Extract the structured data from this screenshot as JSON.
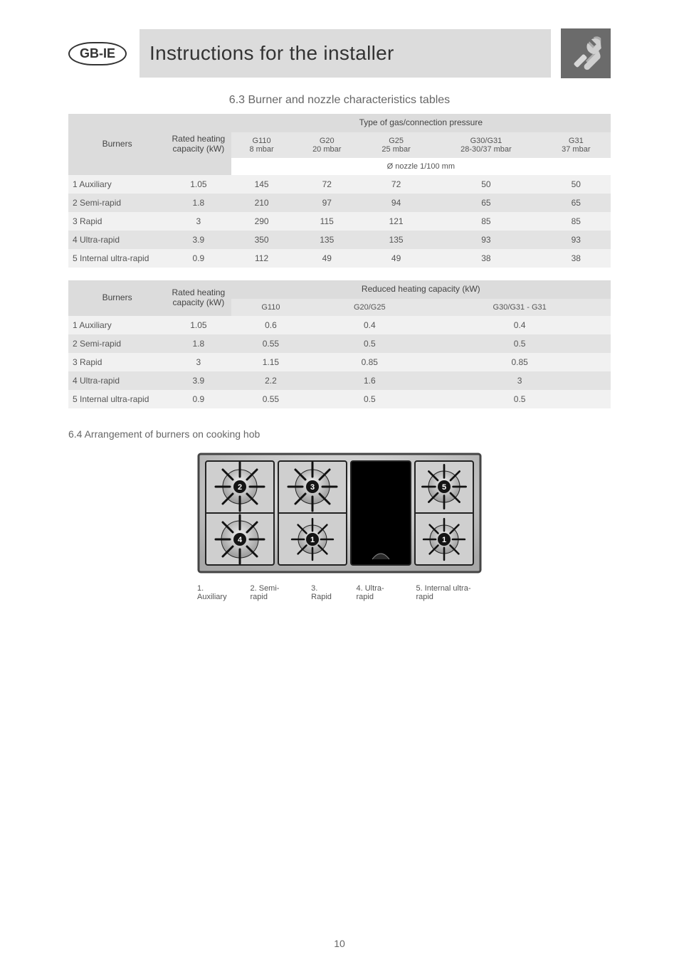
{
  "header": {
    "region_pill": "GB-IE",
    "title": "Instructions for the installer"
  },
  "tables_heading": "6.3 Burner and nozzle characteristics tables",
  "page_number": "10",
  "table1": {
    "header_cells": {
      "c0": "Burners",
      "c1": "Rated heating capacity (kW)",
      "c2": "Type of gas/connection pressure"
    },
    "sub_cells": {
      "s0": "G110\n8 mbar",
      "s1": "G20\n20 mbar",
      "s2": "G25\n25 mbar",
      "s3": "G30/G31\n28-30/37 mbar",
      "s4": "G31\n37 mbar"
    },
    "sub_row2_label": "Ø nozzle 1/100 mm",
    "rows": [
      [
        "1  Auxiliary",
        "1.05",
        "145",
        "72",
        "72",
        "50",
        "50"
      ],
      [
        "2  Semi-rapid",
        "1.8",
        "210",
        "97",
        "94",
        "65",
        "65"
      ],
      [
        "3  Rapid",
        "3",
        "290",
        "115",
        "121",
        "85",
        "85"
      ],
      [
        "4  Ultra-rapid",
        "3.9",
        "350",
        "135",
        "135",
        "93",
        "93"
      ],
      [
        "5  Internal ultra-rapid",
        "0.9",
        "112",
        "49",
        "49",
        "38",
        "38"
      ]
    ]
  },
  "table2": {
    "header_cells": {
      "c0": "Burners",
      "c1": "Rated heating capacity (kW)",
      "c2": "Reduced heating capacity (kW)"
    },
    "sub_cells": {
      "s0": "G110",
      "s1": "G20/G25",
      "s2": "G30/G31 - G31"
    },
    "rows": [
      [
        "1  Auxiliary",
        "1.05",
        "0.6",
        "0.4",
        "0.4"
      ],
      [
        "2  Semi-rapid",
        "1.8",
        "0.55",
        "0.5",
        "0.5"
      ],
      [
        "3  Rapid",
        "3",
        "1.15",
        "0.85",
        "0.85"
      ],
      [
        "4  Ultra-rapid",
        "3.9",
        "2.2",
        "1.6",
        "3"
      ],
      [
        "5  Internal ultra-rapid",
        "0.9",
        "0.55",
        "0.5",
        "0.5"
      ]
    ]
  },
  "hob": {
    "heading": "6.4   Arrangement of burners on cooking hob",
    "burners": [
      {
        "id": "1",
        "label": "1. Auxiliary"
      },
      {
        "id": "2",
        "label": "2. Semi-rapid"
      },
      {
        "id": "3",
        "label": "3. Rapid"
      },
      {
        "id": "4",
        "label": "4. Ultra-rapid"
      },
      {
        "id": "5",
        "label": "5. Internal ultra-rapid"
      }
    ],
    "legend": {
      "l1": "1. Auxiliary",
      "l2": "2. Semi-rapid",
      "l3": "3. Rapid",
      "l4": "4. Ultra-rapid",
      "l5": "5. Internal ultra-rapid"
    }
  },
  "colors": {
    "grey_band": "#dcdcdc",
    "zebra_light": "#f1f1f1",
    "zebra_dark": "#e3e3e3",
    "text": "#555555",
    "badge_bg": "#6b6b6b"
  }
}
